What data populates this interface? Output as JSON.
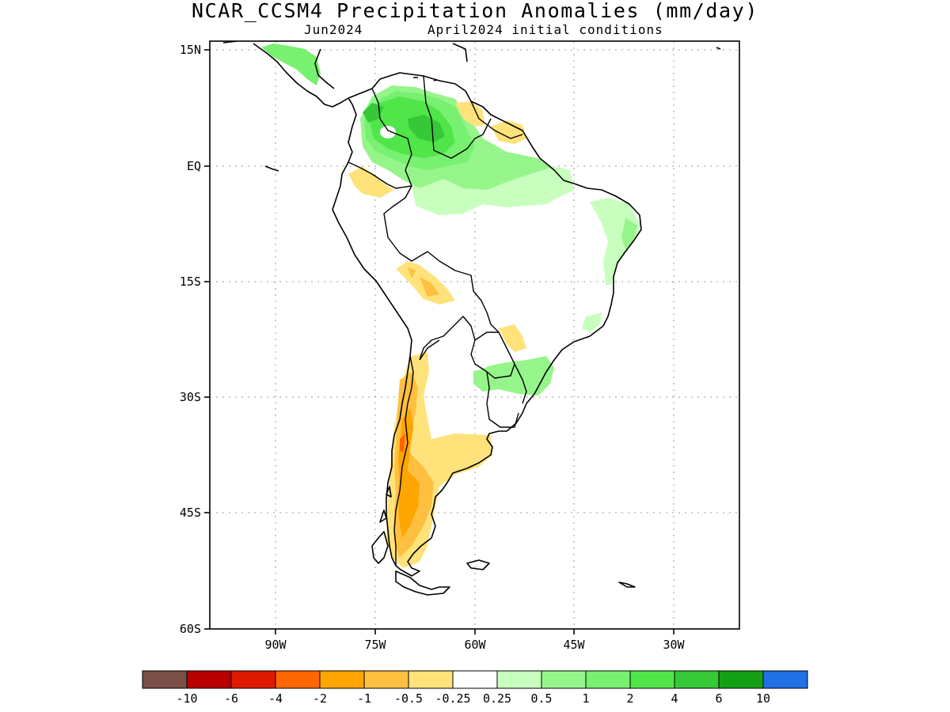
{
  "header": {
    "title": "NCAR_CCSM4 Precipitation Anomalies (mm/day)",
    "subtitle_left": "Jun2024",
    "subtitle_right": "April2024 initial conditions"
  },
  "map": {
    "lat_labels": [
      "15N",
      "EQ",
      "15S",
      "30S",
      "45S",
      "60S"
    ],
    "lon_labels": [
      "90W",
      "75W",
      "60W",
      "45W",
      "30W"
    ]
  },
  "colorbar": {
    "colors": [
      "#7a5048",
      "#b80000",
      "#dd1a00",
      "#ff6600",
      "#ffa500",
      "#ffc040",
      "#ffe27a",
      "#ffffff",
      "#c8ffbe",
      "#96f58a",
      "#78f070",
      "#50e64a",
      "#36c836",
      "#14a014",
      "#2070e6"
    ],
    "labels": [
      "-10",
      "-6",
      "-4",
      "-2",
      "-1",
      "-0.5",
      "-0.25",
      "0.25",
      "0.5",
      "1",
      "2",
      "4",
      "6",
      "10"
    ]
  }
}
